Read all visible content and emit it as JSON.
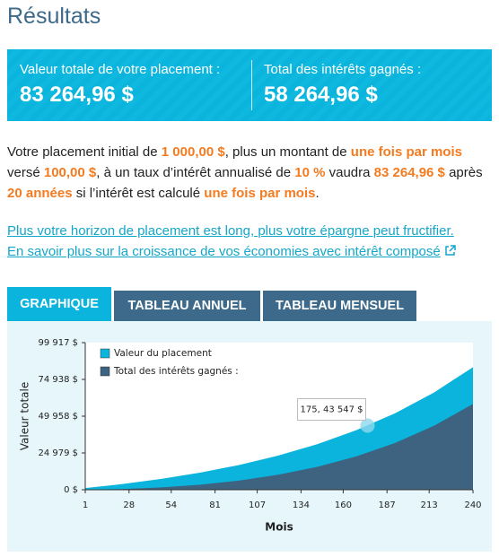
{
  "header": {
    "title": "Résultats"
  },
  "summary": {
    "items": [
      {
        "label": "Valeur totale de votre placement :",
        "value": "83 264,96 $"
      },
      {
        "label": "Total des intérêts gagnés :",
        "value": "58 264,96 $"
      }
    ]
  },
  "description": {
    "parts": [
      {
        "text": "Votre placement initial de "
      },
      {
        "text": "1 000,00 $",
        "emphasis": true
      },
      {
        "text": ", plus un montant de "
      },
      {
        "text": "une fois par mois",
        "emphasis": true
      },
      {
        "text": " versé "
      },
      {
        "text": "100,00 $",
        "emphasis": true
      },
      {
        "text": ", à un taux d’intérêt annualisé de "
      },
      {
        "text": "10 %",
        "emphasis": true
      },
      {
        "text": " vaudra "
      },
      {
        "text": "83 264,96 $",
        "emphasis": true
      },
      {
        "text": " après "
      },
      {
        "text": "20 années",
        "emphasis": true
      },
      {
        "text": " si l’intérêt est calculé "
      },
      {
        "text": "une fois par mois",
        "emphasis": true
      },
      {
        "text": "."
      }
    ]
  },
  "links": [
    "Plus votre horizon de placement est long, plus votre épargne peut fructifier.",
    "En savoir plus sur la croissance de vos économies avec intérêt composé"
  ],
  "tabs": {
    "items": [
      "GRAPHIQUE",
      "TABLEAU ANNUEL",
      "TABLEAU MENSUEL"
    ],
    "active": 0
  },
  "chart_data": {
    "type": "area",
    "x_label": "Mois",
    "y_label": "Valeur totale",
    "x": [
      1,
      24,
      48,
      72,
      96,
      120,
      144,
      168,
      192,
      216,
      240
    ],
    "series": [
      {
        "name": "Valeur du placement",
        "color": "#0ab4dc",
        "values": [
          1108,
          3865,
          7362,
          11629,
          16836,
          23191,
          30948,
          40414,
          51964,
          66061,
          83265
        ]
      },
      {
        "name": "Total des intérêts gagnés :",
        "color": "#3d6380",
        "values": [
          8,
          465,
          1562,
          3429,
          6236,
          10191,
          15548,
          22614,
          31764,
          43461,
          58265
        ]
      }
    ],
    "xlim": [
      1,
      240
    ],
    "xticks": [
      1,
      28,
      54,
      81,
      107,
      134,
      160,
      187,
      213,
      240
    ],
    "ylim": [
      0,
      99917
    ],
    "yticks": [
      {
        "value": 0,
        "label": "0 $"
      },
      {
        "value": 24979,
        "label": "24 979 $"
      },
      {
        "value": 49958,
        "label": "49 958 $"
      },
      {
        "value": 74938,
        "label": "74 938 $"
      },
      {
        "value": 99917,
        "label": "99 917 $"
      }
    ],
    "annotation": {
      "x": 175,
      "y": 43547,
      "label": "175, 43 547 $"
    }
  }
}
